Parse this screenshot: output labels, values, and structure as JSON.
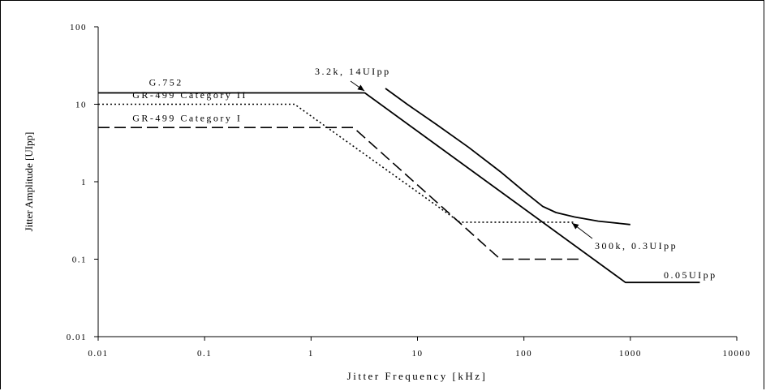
{
  "chart_data": {
    "type": "line",
    "xlabel": "Jitter Frequency [kHz]",
    "ylabel": "Jitter Amplitude [UIpp]",
    "xscale": "log",
    "yscale": "log",
    "xlim": [
      0.01,
      10000
    ],
    "ylim": [
      0.01,
      100
    ],
    "x_ticks": [
      "0.01",
      "0.1",
      "1",
      "10",
      "100",
      "1000",
      "10000"
    ],
    "y_ticks": [
      "0.01",
      "0.1",
      "1",
      "10",
      "100"
    ],
    "grid": false,
    "legend": "none",
    "series": [
      {
        "name": "G.752",
        "style": "solid",
        "color": "#000000",
        "x": [
          0.01,
          3.2,
          900,
          4500
        ],
        "y": [
          14,
          14,
          0.05,
          0.05
        ]
      },
      {
        "name": "GR-499 Category II",
        "style": "dotted",
        "color": "#000000",
        "x": [
          0.01,
          0.7,
          25,
          300
        ],
        "y": [
          10,
          10,
          0.3,
          0.3
        ]
      },
      {
        "name": "GR-499 Category I",
        "style": "dashed",
        "color": "#000000",
        "x": [
          0.01,
          2.5,
          60,
          350
        ],
        "y": [
          5,
          5,
          0.1,
          0.1
        ]
      },
      {
        "name": "",
        "style": "solid",
        "color": "#000000",
        "x": [
          5,
          8,
          15,
          30,
          60,
          100,
          150,
          200,
          300,
          500,
          1000
        ],
        "y": [
          16,
          10,
          5.5,
          2.8,
          1.35,
          0.75,
          0.48,
          0.4,
          0.35,
          0.31,
          0.28
        ]
      }
    ],
    "annotations": [
      {
        "text": "3.2k, 14UIpp",
        "x": 3.2,
        "y": 14,
        "arrow": true
      },
      {
        "text": "300k, 0.3UIpp",
        "x": 300,
        "y": 0.3,
        "arrow": true
      },
      {
        "text": "0.05UIpp",
        "x": 900,
        "y": 0.05,
        "arrow": false
      }
    ],
    "series_labels": [
      "G.752",
      "GR-499 Category II",
      "GR-499 Category I"
    ]
  }
}
